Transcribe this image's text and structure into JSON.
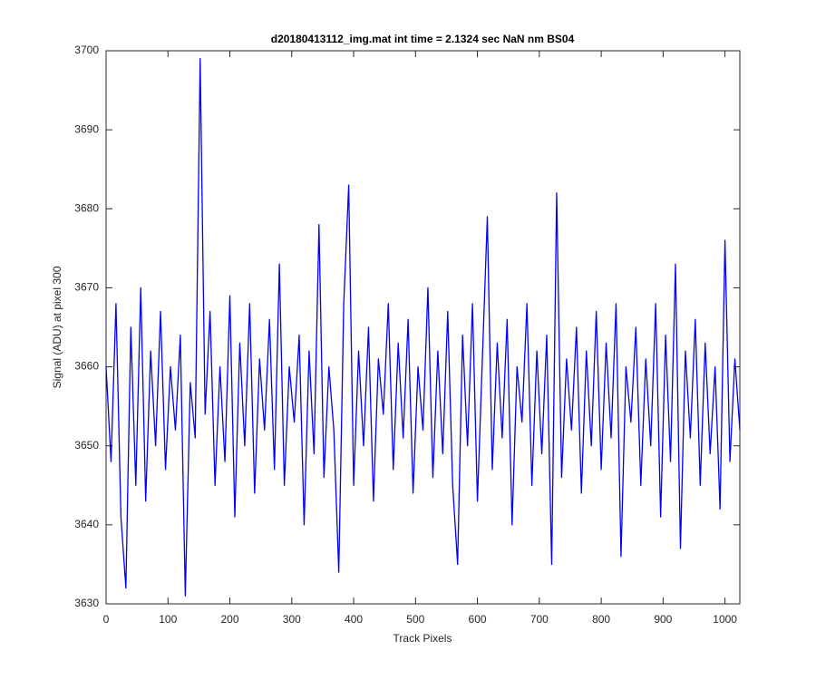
{
  "chart_data": {
    "type": "line",
    "title": "d20180413112_img.mat int time = 2.1324 sec  NaN nm BS04",
    "xlabel": "Track Pixels",
    "ylabel": "Signal (ADU) at pixel 300",
    "x": [
      0,
      8,
      16,
      24,
      32,
      40,
      48,
      56,
      64,
      72,
      80,
      88,
      96,
      104,
      112,
      120,
      128,
      136,
      144,
      152,
      160,
      168,
      176,
      184,
      192,
      200,
      208,
      216,
      224,
      232,
      240,
      248,
      256,
      264,
      272,
      280,
      288,
      296,
      304,
      312,
      320,
      328,
      336,
      344,
      352,
      360,
      368,
      376,
      384,
      392,
      400,
      408,
      416,
      424,
      432,
      440,
      448,
      456,
      464,
      472,
      480,
      488,
      496,
      504,
      512,
      520,
      528,
      536,
      544,
      552,
      560,
      568,
      576,
      584,
      592,
      600,
      608,
      616,
      624,
      632,
      640,
      648,
      656,
      664,
      672,
      680,
      688,
      696,
      704,
      712,
      720,
      728,
      736,
      744,
      752,
      760,
      768,
      776,
      784,
      792,
      800,
      808,
      816,
      824,
      832,
      840,
      848,
      856,
      864,
      872,
      880,
      888,
      896,
      904,
      912,
      920,
      928,
      936,
      944,
      952,
      960,
      968,
      976,
      984,
      992,
      1000,
      1008,
      1016,
      1024
    ],
    "series": [
      {
        "name": "signal",
        "color": "#0000ff",
        "values": [
          3660,
          3648,
          3668,
          3641,
          3632,
          3665,
          3645,
          3670,
          3643,
          3662,
          3650,
          3667,
          3647,
          3660,
          3652,
          3664,
          3631,
          3658,
          3651,
          3699,
          3654,
          3667,
          3645,
          3660,
          3648,
          3669,
          3641,
          3663,
          3650,
          3668,
          3644,
          3661,
          3652,
          3666,
          3647,
          3673,
          3645,
          3660,
          3653,
          3664,
          3640,
          3662,
          3649,
          3678,
          3646,
          3660,
          3652,
          3634,
          3668,
          3683,
          3645,
          3662,
          3650,
          3665,
          3643,
          3661,
          3654,
          3668,
          3647,
          3663,
          3651,
          3666,
          3644,
          3660,
          3652,
          3670,
          3646,
          3662,
          3649,
          3667,
          3645,
          3635,
          3664,
          3650,
          3668,
          3643,
          3661,
          3679,
          3647,
          3663,
          3651,
          3666,
          3640,
          3660,
          3653,
          3668,
          3645,
          3662,
          3649,
          3664,
          3635,
          3682,
          3646,
          3661,
          3652,
          3665,
          3644,
          3662,
          3650,
          3667,
          3647,
          3663,
          3651,
          3668,
          3636,
          3660,
          3653,
          3665,
          3645,
          3661,
          3650,
          3668,
          3641,
          3664,
          3648,
          3673,
          3637,
          3662,
          3651,
          3666,
          3645,
          3663,
          3649,
          3660,
          3642,
          3676,
          3648,
          3661,
          3652
        ]
      }
    ],
    "xlim": [
      0,
      1024
    ],
    "xticks": [
      0,
      100,
      200,
      300,
      400,
      500,
      600,
      700,
      800,
      900,
      1000
    ],
    "ylim": [
      3630,
      3700
    ],
    "yticks": [
      3630,
      3640,
      3650,
      3660,
      3670,
      3680,
      3690,
      3700
    ],
    "grid": false
  }
}
